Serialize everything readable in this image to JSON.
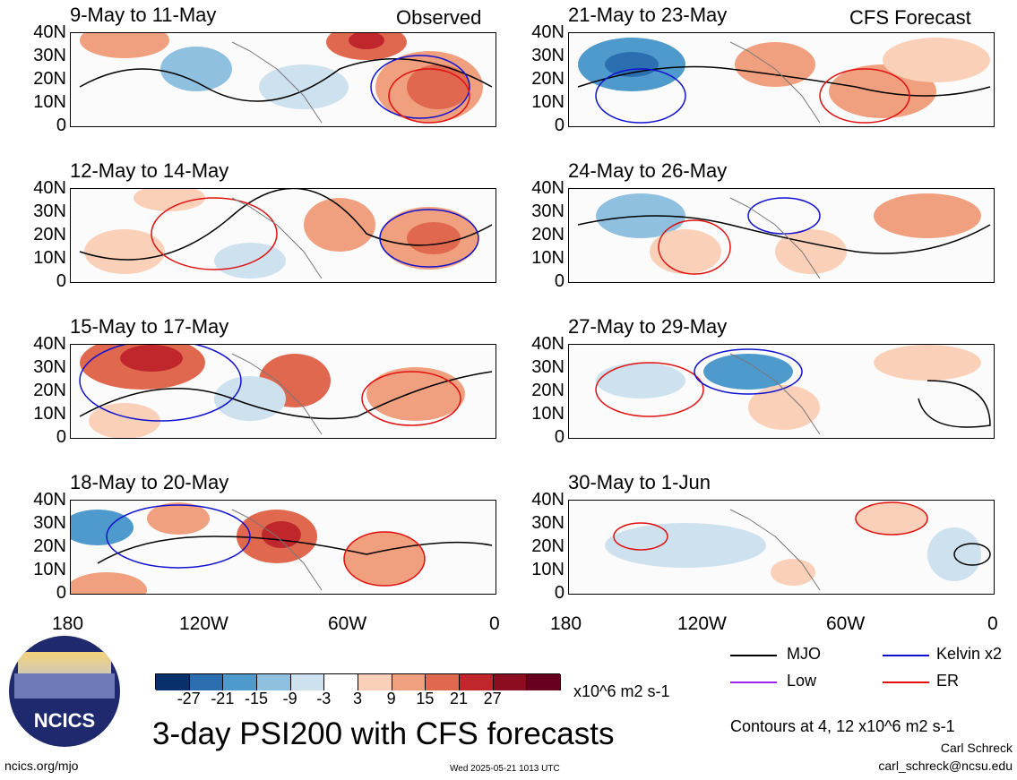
{
  "observed_label": "Observed",
  "forecast_label": "CFS Forecast",
  "panels_left": [
    {
      "title": "9-May to 11-May"
    },
    {
      "title": "12-May to 14-May"
    },
    {
      "title": "15-May to 17-May"
    },
    {
      "title": "18-May to 20-May"
    }
  ],
  "panels_right": [
    {
      "title": "21-May to 23-May"
    },
    {
      "title": "24-May to 26-May"
    },
    {
      "title": "27-May to 29-May"
    },
    {
      "title": "30-May to 1-Jun"
    }
  ],
  "y_ticks": [
    "40N",
    "30N",
    "20N",
    "10N",
    "0"
  ],
  "x_ticks": [
    "180",
    "120W",
    "60W",
    "0"
  ],
  "colorbar": {
    "labels": [
      "-27",
      "-21",
      "-15",
      "-9",
      "-3",
      "3",
      "9",
      "15",
      "21",
      "27"
    ],
    "units": "x10^6 m2 s-1",
    "colors": [
      "#08306b",
      "#2c6fb0",
      "#4f9acc",
      "#90c0df",
      "#cde1ef",
      "#ffffff",
      "#fbd0b8",
      "#f0a07e",
      "#e0684e",
      "#c0272d",
      "#8c0d1f",
      "#67001f"
    ]
  },
  "legend": [
    {
      "label": "MJO",
      "color": "#000000"
    },
    {
      "label": "Kelvin x2",
      "color": "#1010d0"
    },
    {
      "label": "Low",
      "color": "#a020f0"
    },
    {
      "label": "ER",
      "color": "#e01010"
    }
  ],
  "main_title": "3-day PSI200 with CFS forecasts",
  "contours_note": "Contours at 4, 12 x10^6 m2 s-1",
  "author": "Carl Schreck",
  "email": "carl_schreck@ncsu.edu",
  "site": "ncics.org/mjo",
  "timestamp": "Wed 2025-05-21 1013 UTC",
  "logo_text": "NCICS"
}
